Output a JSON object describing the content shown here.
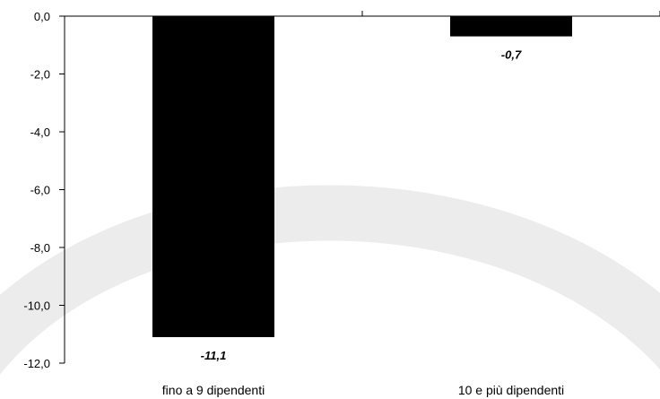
{
  "colors": {
    "bar": "#000000",
    "axis": "#000000",
    "watermark": "#ececec",
    "background": "#ffffff"
  },
  "chart_data": {
    "type": "bar",
    "title": "",
    "xlabel": "",
    "ylabel": "",
    "categories": [
      "fino a 9 dipendenti",
      "10 e più dipendenti"
    ],
    "values": [
      -11.1,
      -0.7
    ],
    "value_labels": [
      "-11,1",
      "-0,7"
    ],
    "ylim": [
      -12,
      0
    ],
    "yticks": [
      0,
      -2,
      -4,
      -6,
      -8,
      -10,
      -12
    ],
    "ytick_labels": [
      "0,0",
      "-2,0",
      "-4,0",
      "-6,0",
      "-8,0",
      "-10,0",
      "-12,0"
    ],
    "grid": false,
    "legend": "none"
  }
}
